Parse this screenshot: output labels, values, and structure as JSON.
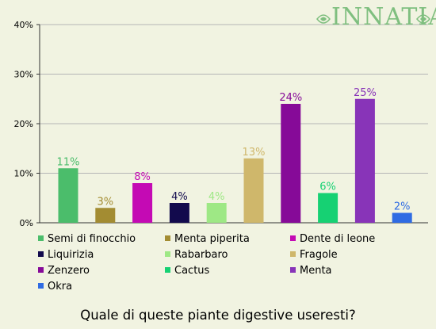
{
  "brand": {
    "name": "INNATIA"
  },
  "question": "Quale di queste piante digestive useresti?",
  "chart_data": {
    "type": "bar",
    "ylim": [
      0,
      40
    ],
    "yticks": [
      "0%",
      "10%",
      "20%",
      "30%",
      "40%"
    ],
    "grid": true,
    "legend_position": "bottom",
    "categories": [
      "Semi di finocchio",
      "Menta piperita",
      "Dente di leone",
      "Liquirizia",
      "Rabarbaro",
      "Fragole",
      "Zenzero",
      "Cactus",
      "Menta",
      "Okra"
    ],
    "values": [
      11,
      3,
      8,
      4,
      4,
      13,
      24,
      6,
      25,
      2
    ],
    "labels": [
      "11%",
      "3%",
      "8%",
      "4%",
      "4%",
      "13%",
      "24%",
      "6%",
      "25%",
      "2%"
    ],
    "colors": [
      "#4bbd6b",
      "#a38c32",
      "#c40ab4",
      "#120a4d",
      "#9ee885",
      "#cfb76b",
      "#860a98",
      "#16d173",
      "#8834b8",
      "#2f6be3"
    ]
  }
}
